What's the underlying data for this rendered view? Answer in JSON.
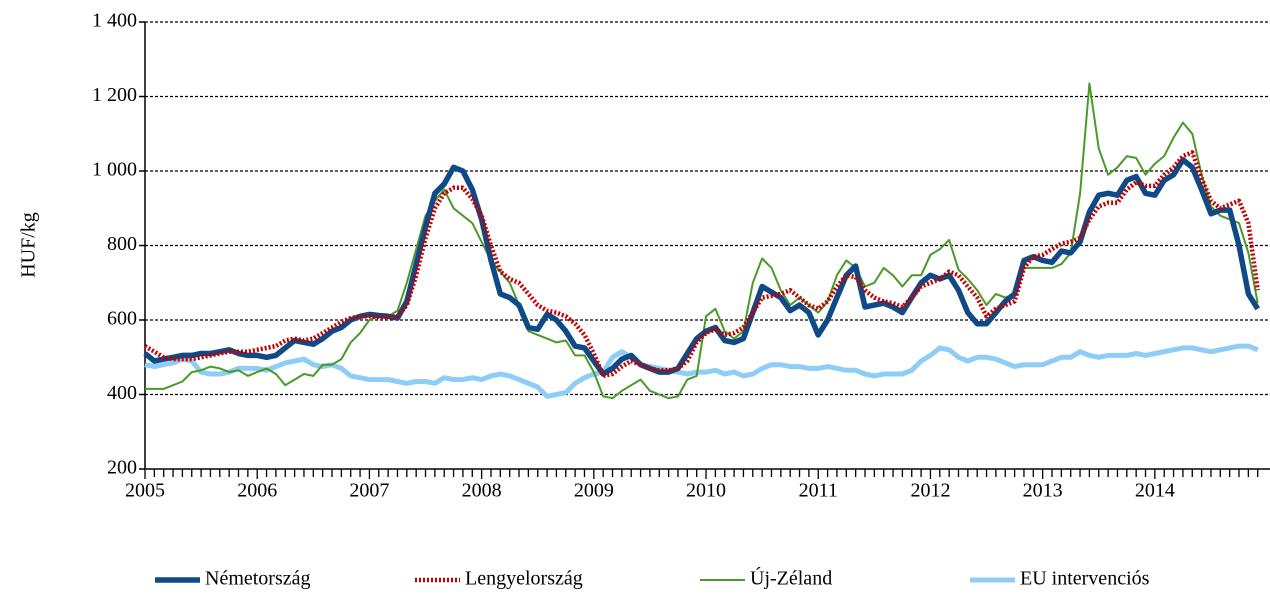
{
  "chart_data": {
    "type": "line",
    "y_label": "HUF/kg",
    "categories": [
      "2005",
      null,
      null,
      null,
      null,
      null,
      null,
      null,
      null,
      null,
      null,
      null,
      "2006",
      null,
      null,
      null,
      null,
      null,
      null,
      null,
      null,
      null,
      null,
      null,
      "2007",
      null,
      null,
      null,
      null,
      null,
      null,
      null,
      null,
      null,
      null,
      null,
      "2008",
      null,
      null,
      null,
      null,
      null,
      null,
      null,
      null,
      null,
      null,
      null,
      "2009",
      null,
      null,
      null,
      null,
      null,
      null,
      null,
      null,
      null,
      null,
      null,
      "2010",
      null,
      null,
      null,
      null,
      null,
      null,
      null,
      null,
      null,
      null,
      null,
      "2011",
      null,
      null,
      null,
      null,
      null,
      null,
      null,
      null,
      null,
      null,
      null,
      "2012",
      null,
      null,
      null,
      null,
      null,
      null,
      null,
      null,
      null,
      null,
      null,
      "2013",
      null,
      null,
      null,
      null,
      null,
      null,
      null,
      null,
      null,
      null,
      null,
      "2014",
      null,
      null,
      null,
      null,
      null,
      null,
      null,
      null,
      null,
      null,
      null
    ],
    "ylim": [
      200,
      1400
    ],
    "yticks": [
      200,
      400,
      600,
      800,
      {
        "value": 1000,
        "label": "1 000"
      },
      {
        "value": 1200,
        "label": "1 200"
      },
      {
        "value": 1400,
        "label": "1 400"
      }
    ],
    "grid": true,
    "legend": "bottom",
    "series": [
      {
        "name": "EU intervenciós",
        "color": "#8ecdf5",
        "width": 5,
        "dash": "none",
        "values": [
          480,
          475,
          480,
          485,
          495,
          490,
          460,
          455,
          455,
          460,
          470,
          470,
          470,
          465,
          475,
          485,
          490,
          495,
          480,
          475,
          480,
          470,
          450,
          445,
          440,
          440,
          440,
          435,
          430,
          435,
          435,
          430,
          445,
          440,
          440,
          445,
          440,
          450,
          455,
          450,
          440,
          430,
          420,
          395,
          400,
          405,
          430,
          445,
          455,
          460,
          500,
          515,
          500,
          480,
          475,
          470,
          465,
          460,
          455,
          460,
          460,
          465,
          455,
          460,
          450,
          455,
          470,
          480,
          480,
          475,
          475,
          470,
          470,
          475,
          470,
          465,
          465,
          455,
          450,
          455,
          455,
          455,
          465,
          490,
          505,
          525,
          520,
          500,
          490,
          500,
          500,
          495,
          485,
          475,
          480,
          480,
          480,
          490,
          500,
          500,
          515,
          505,
          500,
          505,
          505,
          505,
          510,
          505,
          510,
          515,
          520,
          525,
          525,
          520,
          515,
          520,
          525,
          530,
          530,
          520
        ]
      },
      {
        "name": "Új-Zéland",
        "color": "#4a9a2a",
        "width": 2,
        "dash": "none",
        "values": [
          415,
          415,
          415,
          425,
          435,
          460,
          465,
          475,
          470,
          460,
          465,
          450,
          460,
          470,
          455,
          425,
          440,
          455,
          450,
          480,
          480,
          495,
          540,
          565,
          600,
          610,
          610,
          625,
          700,
          790,
          880,
          920,
          950,
          900,
          880,
          860,
          810,
          760,
          730,
          700,
          640,
          570,
          560,
          550,
          540,
          545,
          505,
          505,
          460,
          395,
          390,
          410,
          425,
          440,
          410,
          400,
          390,
          395,
          440,
          450,
          610,
          630,
          570,
          550,
          570,
          700,
          765,
          740,
          680,
          640,
          660,
          640,
          620,
          650,
          720,
          760,
          740,
          690,
          700,
          740,
          720,
          690,
          720,
          720,
          775,
          790,
          815,
          735,
          710,
          680,
          640,
          670,
          660,
          670,
          740,
          740,
          740,
          740,
          750,
          780,
          940,
          1235,
          1060,
          990,
          1010,
          1040,
          1035,
          990,
          1020,
          1040,
          1090,
          1130,
          1100,
          990,
          905,
          880,
          870,
          860,
          780,
          645
        ]
      },
      {
        "name": "Németország",
        "color": "#0f4a86",
        "width": 5.5,
        "dash": "none",
        "values": [
          510,
          490,
          495,
          500,
          505,
          505,
          510,
          510,
          515,
          520,
          510,
          505,
          505,
          500,
          505,
          525,
          545,
          540,
          535,
          550,
          570,
          580,
          600,
          610,
          615,
          612,
          610,
          605,
          650,
          750,
          850,
          940,
          965,
          1010,
          1000,
          950,
          870,
          760,
          670,
          660,
          640,
          580,
          575,
          615,
          600,
          570,
          530,
          525,
          490,
          455,
          470,
          495,
          505,
          480,
          470,
          460,
          460,
          470,
          510,
          550,
          570,
          580,
          545,
          540,
          550,
          620,
          690,
          675,
          660,
          625,
          640,
          620,
          560,
          600,
          660,
          720,
          745,
          635,
          640,
          645,
          635,
          620,
          660,
          700,
          720,
          710,
          720,
          680,
          620,
          590,
          590,
          620,
          650,
          670,
          760,
          770,
          760,
          755,
          785,
          780,
          810,
          890,
          935,
          940,
          935,
          975,
          985,
          940,
          935,
          975,
          990,
          1030,
          1010,
          950,
          885,
          895,
          895,
          800,
          670,
          630
        ]
      },
      {
        "name": "Lengyelország",
        "color": "#c00000",
        "width": 4.5,
        "dash": "2,2",
        "values": [
          530,
          515,
          500,
          495,
          495,
          495,
          500,
          505,
          510,
          515,
          515,
          515,
          520,
          525,
          530,
          545,
          550,
          545,
          550,
          565,
          580,
          595,
          605,
          610,
          610,
          608,
          608,
          610,
          640,
          720,
          820,
          900,
          940,
          955,
          955,
          925,
          880,
          800,
          730,
          710,
          700,
          670,
          640,
          625,
          620,
          610,
          590,
          560,
          510,
          450,
          455,
          475,
          490,
          480,
          470,
          465,
          465,
          470,
          490,
          540,
          565,
          575,
          560,
          565,
          580,
          620,
          660,
          665,
          670,
          680,
          660,
          640,
          630,
          650,
          690,
          720,
          715,
          680,
          660,
          650,
          645,
          635,
          660,
          690,
          700,
          710,
          730,
          720,
          690,
          660,
          610,
          630,
          640,
          650,
          740,
          770,
          775,
          790,
          805,
          810,
          820,
          870,
          905,
          915,
          915,
          950,
          970,
          960,
          960,
          990,
          1010,
          1040,
          1050,
          980,
          920,
          900,
          910,
          920,
          860,
          680
        ]
      }
    ]
  }
}
